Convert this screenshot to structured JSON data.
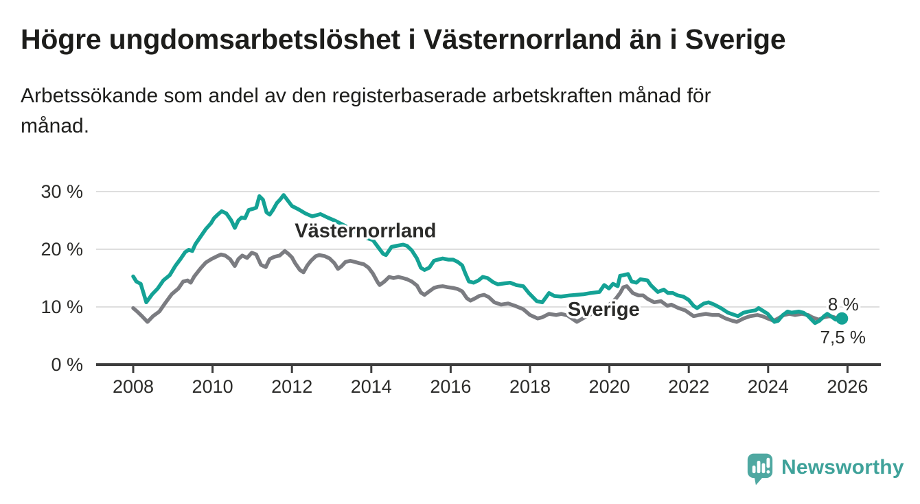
{
  "header": {
    "title": "Högre ungdomsarbetslöshet i Västernorrland än i Sverige",
    "subtitle_line1": "Arbetssökande som andel av den registerbaserade arbetskraften månad för",
    "subtitle_line2": "månad."
  },
  "footer": {
    "brand": "Newsworthy"
  },
  "colors": {
    "vasternorrland": "#14A295",
    "sverige": "#7B7C81",
    "grid": "#DEDEDE",
    "axis": "#3D3D3D",
    "text": "#1D1D1B",
    "brand_text": "#3FA29A",
    "brand_icon": "#4FA8A1"
  },
  "chart_data": {
    "type": "line",
    "title": "Högre ungdomsarbetslöshet i Västernorrland än i Sverige",
    "subtitle": "Arbetssökande som andel av den registerbaserade arbetskraften månad för månad.",
    "xlabel": "",
    "ylabel": "",
    "grid": "horizontal",
    "legend_position": "inline-labels",
    "xlim": [
      2007.55,
      2026.9
    ],
    "ylim": [
      0,
      31.5
    ],
    "x_ticks": [
      {
        "value": 2008,
        "label": "2008"
      },
      {
        "value": 2010,
        "label": "2010"
      },
      {
        "value": 2012,
        "label": "2012"
      },
      {
        "value": 2014,
        "label": "2014"
      },
      {
        "value": 2016,
        "label": "2016"
      },
      {
        "value": 2018,
        "label": "2018"
      },
      {
        "value": 2020,
        "label": "2020"
      },
      {
        "value": 2022,
        "label": "2022"
      },
      {
        "value": 2024,
        "label": "2024"
      },
      {
        "value": 2026,
        "label": "2026"
      }
    ],
    "y_ticks": [
      {
        "value": 0,
        "label": "0 %"
      },
      {
        "value": 10,
        "label": "10 %"
      },
      {
        "value": 20,
        "label": "20 %"
      },
      {
        "value": 30,
        "label": "30 %"
      }
    ],
    "series": [
      {
        "name": "Västernorrland",
        "color": "#14A295",
        "label_pos": [
          2012.07,
          22.1
        ],
        "end_label": "8 %",
        "end_value": 8.0,
        "end_dot": true,
        "points": [
          [
            2008.0,
            15.3
          ],
          [
            2008.08,
            14.4
          ],
          [
            2008.19,
            14.0
          ],
          [
            2008.33,
            10.8
          ],
          [
            2008.48,
            12.2
          ],
          [
            2008.62,
            13.2
          ],
          [
            2008.76,
            14.6
          ],
          [
            2008.92,
            15.5
          ],
          [
            2009.06,
            17.1
          ],
          [
            2009.19,
            18.3
          ],
          [
            2009.31,
            19.5
          ],
          [
            2009.4,
            19.9
          ],
          [
            2009.49,
            19.7
          ],
          [
            2009.57,
            20.9
          ],
          [
            2009.71,
            22.3
          ],
          [
            2009.83,
            23.5
          ],
          [
            2009.96,
            24.5
          ],
          [
            2010.04,
            25.4
          ],
          [
            2010.13,
            26.0
          ],
          [
            2010.23,
            26.6
          ],
          [
            2010.35,
            26.2
          ],
          [
            2010.47,
            25.0
          ],
          [
            2010.56,
            23.7
          ],
          [
            2010.65,
            25.0
          ],
          [
            2010.73,
            25.5
          ],
          [
            2010.82,
            25.4
          ],
          [
            2010.91,
            26.8
          ],
          [
            2011.01,
            27.0
          ],
          [
            2011.1,
            27.2
          ],
          [
            2011.18,
            29.2
          ],
          [
            2011.27,
            28.6
          ],
          [
            2011.36,
            26.4
          ],
          [
            2011.44,
            26.0
          ],
          [
            2011.52,
            26.8
          ],
          [
            2011.62,
            28.0
          ],
          [
            2011.7,
            28.6
          ],
          [
            2011.79,
            29.4
          ],
          [
            2011.9,
            28.4
          ],
          [
            2012.0,
            27.5
          ],
          [
            2012.17,
            26.9
          ],
          [
            2012.34,
            26.2
          ],
          [
            2012.51,
            25.7
          ],
          [
            2012.72,
            26.1
          ],
          [
            2012.9,
            25.5
          ],
          [
            2013.1,
            24.9
          ],
          [
            2013.3,
            24.2
          ],
          [
            2013.5,
            23.4
          ],
          [
            2013.7,
            22.6
          ],
          [
            2013.9,
            21.9
          ],
          [
            2014.04,
            21.6
          ],
          [
            2014.19,
            20.2
          ],
          [
            2014.3,
            19.2
          ],
          [
            2014.37,
            19.0
          ],
          [
            2014.51,
            20.4
          ],
          [
            2014.64,
            20.6
          ],
          [
            2014.8,
            20.8
          ],
          [
            2014.9,
            20.6
          ],
          [
            2015.02,
            19.8
          ],
          [
            2015.15,
            18.4
          ],
          [
            2015.25,
            16.8
          ],
          [
            2015.34,
            16.4
          ],
          [
            2015.46,
            16.8
          ],
          [
            2015.58,
            18.0
          ],
          [
            2015.68,
            18.2
          ],
          [
            2015.8,
            18.4
          ],
          [
            2015.94,
            18.2
          ],
          [
            2016.06,
            18.2
          ],
          [
            2016.18,
            17.8
          ],
          [
            2016.29,
            17.2
          ],
          [
            2016.37,
            15.8
          ],
          [
            2016.46,
            14.4
          ],
          [
            2016.58,
            14.2
          ],
          [
            2016.7,
            14.6
          ],
          [
            2016.81,
            15.2
          ],
          [
            2016.93,
            15.0
          ],
          [
            2017.07,
            14.3
          ],
          [
            2017.19,
            13.9
          ],
          [
            2017.36,
            14.1
          ],
          [
            2017.5,
            14.2
          ],
          [
            2017.65,
            13.8
          ],
          [
            2017.83,
            13.6
          ],
          [
            2017.97,
            12.4
          ],
          [
            2018.17,
            11.0
          ],
          [
            2018.31,
            10.8
          ],
          [
            2018.48,
            12.4
          ],
          [
            2018.61,
            11.9
          ],
          [
            2018.78,
            11.8
          ],
          [
            2019.0,
            12.0
          ],
          [
            2019.35,
            12.2
          ],
          [
            2019.52,
            12.4
          ],
          [
            2019.75,
            12.6
          ],
          [
            2019.87,
            13.8
          ],
          [
            2019.99,
            13.2
          ],
          [
            2020.09,
            14.0
          ],
          [
            2020.21,
            13.6
          ],
          [
            2020.27,
            15.4
          ],
          [
            2020.35,
            15.5
          ],
          [
            2020.47,
            15.7
          ],
          [
            2020.56,
            14.4
          ],
          [
            2020.68,
            14.2
          ],
          [
            2020.78,
            14.8
          ],
          [
            2020.96,
            14.6
          ],
          [
            2021.04,
            13.8
          ],
          [
            2021.22,
            12.6
          ],
          [
            2021.37,
            13.0
          ],
          [
            2021.48,
            12.4
          ],
          [
            2021.6,
            12.4
          ],
          [
            2021.72,
            12.0
          ],
          [
            2021.86,
            11.8
          ],
          [
            2022.0,
            11.2
          ],
          [
            2022.12,
            10.2
          ],
          [
            2022.21,
            9.8
          ],
          [
            2022.38,
            10.6
          ],
          [
            2022.5,
            10.8
          ],
          [
            2022.64,
            10.4
          ],
          [
            2022.81,
            9.8
          ],
          [
            2022.99,
            9.0
          ],
          [
            2023.16,
            8.6
          ],
          [
            2023.24,
            8.4
          ],
          [
            2023.38,
            9.0
          ],
          [
            2023.5,
            9.2
          ],
          [
            2023.68,
            9.4
          ],
          [
            2023.76,
            9.8
          ],
          [
            2023.85,
            9.4
          ],
          [
            2023.99,
            8.8
          ],
          [
            2024.16,
            7.4
          ],
          [
            2024.25,
            7.6
          ],
          [
            2024.37,
            8.6
          ],
          [
            2024.49,
            9.2
          ],
          [
            2024.59,
            9.0
          ],
          [
            2024.77,
            9.2
          ],
          [
            2024.89,
            9.0
          ],
          [
            2025.01,
            8.4
          ],
          [
            2025.18,
            7.2
          ],
          [
            2025.29,
            7.6
          ],
          [
            2025.41,
            8.4
          ],
          [
            2025.49,
            8.8
          ],
          [
            2025.58,
            8.4
          ],
          [
            2025.7,
            7.8
          ],
          [
            2025.86,
            8.0
          ]
        ]
      },
      {
        "name": "Sverige",
        "color": "#7B7C81",
        "label_pos": [
          2018.95,
          8.45
        ],
        "end_label": "7,5 %",
        "end_value": 7.5,
        "end_dot": false,
        "points": [
          [
            2008.0,
            9.8
          ],
          [
            2008.1,
            9.2
          ],
          [
            2008.22,
            8.4
          ],
          [
            2008.36,
            7.4
          ],
          [
            2008.5,
            8.4
          ],
          [
            2008.66,
            9.2
          ],
          [
            2008.8,
            10.6
          ],
          [
            2008.97,
            12.2
          ],
          [
            2009.14,
            13.2
          ],
          [
            2009.26,
            14.4
          ],
          [
            2009.37,
            14.6
          ],
          [
            2009.45,
            14.2
          ],
          [
            2009.54,
            15.3
          ],
          [
            2009.7,
            16.7
          ],
          [
            2009.83,
            17.7
          ],
          [
            2009.97,
            18.3
          ],
          [
            2010.09,
            18.7
          ],
          [
            2010.21,
            19.1
          ],
          [
            2010.32,
            18.9
          ],
          [
            2010.44,
            18.3
          ],
          [
            2010.56,
            17.1
          ],
          [
            2010.65,
            18.3
          ],
          [
            2010.75,
            18.9
          ],
          [
            2010.87,
            18.5
          ],
          [
            2010.99,
            19.4
          ],
          [
            2011.1,
            19.1
          ],
          [
            2011.22,
            17.3
          ],
          [
            2011.34,
            16.9
          ],
          [
            2011.44,
            18.3
          ],
          [
            2011.56,
            18.7
          ],
          [
            2011.69,
            18.9
          ],
          [
            2011.82,
            19.7
          ],
          [
            2011.91,
            19.2
          ],
          [
            2012.0,
            18.6
          ],
          [
            2012.08,
            17.6
          ],
          [
            2012.2,
            16.4
          ],
          [
            2012.29,
            16.0
          ],
          [
            2012.39,
            17.2
          ],
          [
            2012.48,
            18.0
          ],
          [
            2012.6,
            18.8
          ],
          [
            2012.69,
            19.0
          ],
          [
            2012.83,
            18.8
          ],
          [
            2012.95,
            18.4
          ],
          [
            2013.07,
            17.6
          ],
          [
            2013.16,
            16.6
          ],
          [
            2013.24,
            17.0
          ],
          [
            2013.35,
            17.8
          ],
          [
            2013.47,
            18.0
          ],
          [
            2013.59,
            17.8
          ],
          [
            2013.69,
            17.6
          ],
          [
            2013.81,
            17.4
          ],
          [
            2013.93,
            16.8
          ],
          [
            2014.04,
            15.8
          ],
          [
            2014.16,
            14.3
          ],
          [
            2014.21,
            13.8
          ],
          [
            2014.33,
            14.4
          ],
          [
            2014.45,
            15.2
          ],
          [
            2014.56,
            15.0
          ],
          [
            2014.68,
            15.2
          ],
          [
            2014.8,
            15.0
          ],
          [
            2014.9,
            14.8
          ],
          [
            2015.02,
            14.4
          ],
          [
            2015.15,
            13.7
          ],
          [
            2015.25,
            12.5
          ],
          [
            2015.34,
            12.1
          ],
          [
            2015.46,
            12.7
          ],
          [
            2015.58,
            13.3
          ],
          [
            2015.68,
            13.5
          ],
          [
            2015.8,
            13.6
          ],
          [
            2015.94,
            13.4
          ],
          [
            2016.06,
            13.3
          ],
          [
            2016.18,
            13.1
          ],
          [
            2016.29,
            12.7
          ],
          [
            2016.41,
            11.5
          ],
          [
            2016.5,
            11.1
          ],
          [
            2016.62,
            11.5
          ],
          [
            2016.72,
            11.9
          ],
          [
            2016.84,
            12.1
          ],
          [
            2016.96,
            11.7
          ],
          [
            2017.1,
            10.8
          ],
          [
            2017.27,
            10.4
          ],
          [
            2017.45,
            10.6
          ],
          [
            2017.62,
            10.2
          ],
          [
            2017.83,
            9.6
          ],
          [
            2018.0,
            8.6
          ],
          [
            2018.19,
            8.0
          ],
          [
            2018.31,
            8.2
          ],
          [
            2018.48,
            8.8
          ],
          [
            2018.66,
            8.6
          ],
          [
            2018.79,
            8.8
          ],
          [
            2018.95,
            8.5
          ],
          [
            2019.18,
            7.4
          ],
          [
            2019.38,
            8.2
          ],
          [
            2019.61,
            9.0
          ],
          [
            2019.87,
            9.6
          ],
          [
            2020.16,
            11.4
          ],
          [
            2020.27,
            12.4
          ],
          [
            2020.35,
            13.4
          ],
          [
            2020.44,
            13.6
          ],
          [
            2020.59,
            12.4
          ],
          [
            2020.73,
            12.0
          ],
          [
            2020.85,
            12.0
          ],
          [
            2020.96,
            11.4
          ],
          [
            2021.13,
            10.8
          ],
          [
            2021.3,
            11.0
          ],
          [
            2021.46,
            10.2
          ],
          [
            2021.56,
            10.4
          ],
          [
            2021.74,
            9.8
          ],
          [
            2021.91,
            9.4
          ],
          [
            2022.12,
            8.4
          ],
          [
            2022.26,
            8.6
          ],
          [
            2022.43,
            8.8
          ],
          [
            2022.6,
            8.6
          ],
          [
            2022.76,
            8.6
          ],
          [
            2022.93,
            8.0
          ],
          [
            2023.1,
            7.6
          ],
          [
            2023.21,
            7.4
          ],
          [
            2023.38,
            8.0
          ],
          [
            2023.55,
            8.4
          ],
          [
            2023.73,
            8.6
          ],
          [
            2023.85,
            8.4
          ],
          [
            2023.99,
            8.0
          ],
          [
            2024.14,
            7.6
          ],
          [
            2024.25,
            8.0
          ],
          [
            2024.4,
            8.6
          ],
          [
            2024.54,
            8.8
          ],
          [
            2024.68,
            8.6
          ],
          [
            2024.85,
            8.8
          ],
          [
            2025.01,
            8.6
          ],
          [
            2025.11,
            8.2
          ],
          [
            2025.27,
            7.8
          ],
          [
            2025.41,
            8.2
          ],
          [
            2025.55,
            8.4
          ],
          [
            2025.67,
            8.2
          ],
          [
            2025.81,
            7.8
          ],
          [
            2025.92,
            7.5
          ]
        ]
      }
    ]
  }
}
